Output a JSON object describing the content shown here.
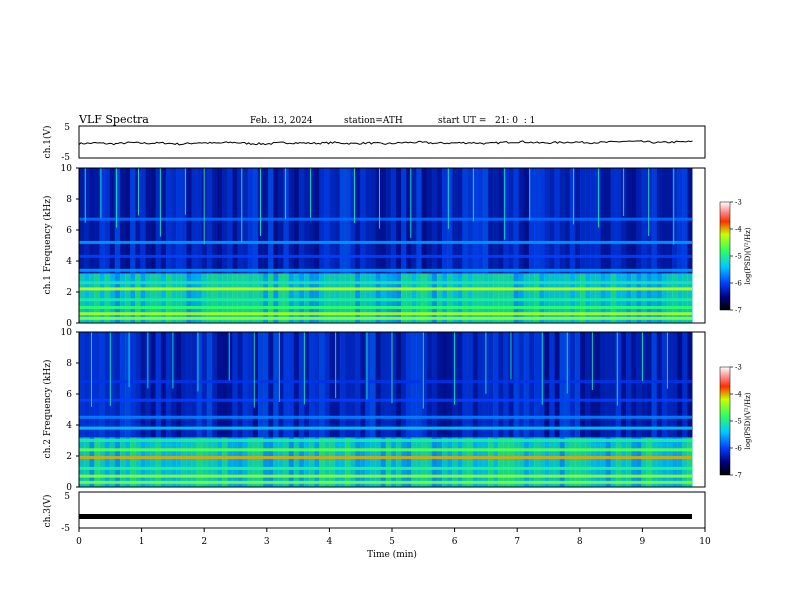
{
  "header": {
    "title": "VLF Spectra",
    "date": "Feb. 13, 2024",
    "station": "station=ATH",
    "start": "start UT =   21: 0  : 1"
  },
  "chart_data": [
    {
      "type": "line",
      "panel": "ch1-waveform",
      "ylabel": "ch.1(V)",
      "ylim": [
        -5,
        5
      ],
      "yticks": [
        "5",
        "-5"
      ],
      "xlim": [
        0,
        10
      ],
      "series": [
        {
          "values": [
            -0.5,
            -0.3,
            -0.6,
            -0.2,
            -0.4,
            -0.3,
            -0.7,
            -0.2,
            -0.4,
            -0.1,
            -0.5,
            -0.6,
            -0.2,
            -0.3,
            -0.4,
            -0.2,
            -0.5,
            -0.3,
            -0.6,
            -0.2,
            -0.1,
            -0.4,
            -0.3,
            -0.2,
            -0.5,
            -0.1,
            0.1,
            -0.3,
            -0.2,
            0.0,
            -0.2,
            -0.1,
            0.2,
            0.1,
            -0.2,
            0.0,
            0.1
          ]
        }
      ]
    },
    {
      "type": "heatmap",
      "panel": "ch1-spectrogram",
      "ylabel": "ch.1 Frequency (kHz)",
      "xlim": [
        0,
        10
      ],
      "ylim": [
        0,
        10
      ],
      "yticks": [
        "0",
        "2",
        "4",
        "6",
        "8",
        "10"
      ],
      "colorbar": {
        "label": "log(PSD)(V²/Hz)",
        "ticks": [
          "-3",
          "-4",
          "-5",
          "-6",
          "-7"
        ],
        "range": [
          -7,
          -3
        ]
      },
      "bands_khz": [
        {
          "f": 0.3,
          "level": -4.4
        },
        {
          "f": 0.6,
          "level": -4.3
        },
        {
          "f": 1.0,
          "level": -4.8
        },
        {
          "f": 1.5,
          "level": -5.0
        },
        {
          "f": 2.2,
          "level": -4.2
        },
        {
          "f": 2.6,
          "level": -5.1
        },
        {
          "f": 3.4,
          "level": -5.6
        },
        {
          "f": 4.3,
          "level": -6.0
        },
        {
          "f": 5.2,
          "level": -5.6
        },
        {
          "f": 6.7,
          "level": -5.8
        }
      ],
      "sferic_times_min": [
        0.1,
        0.35,
        0.6,
        0.95,
        1.3,
        1.7,
        2.0,
        2.6,
        2.9,
        3.3,
        3.7,
        4.4,
        4.8,
        5.3,
        5.9,
        6.3,
        6.8,
        7.2,
        7.9,
        8.3,
        8.7,
        9.1,
        9.5
      ]
    },
    {
      "type": "heatmap",
      "panel": "ch2-spectrogram",
      "ylabel": "ch.2 Frequency (kHz)",
      "xlim": [
        0,
        10
      ],
      "ylim": [
        0,
        10
      ],
      "yticks": [
        "0",
        "2",
        "4",
        "6",
        "8",
        "10"
      ],
      "colorbar": {
        "label": "log(PSD)(V²/Hz)",
        "ticks": [
          "-3",
          "-4",
          "-5",
          "-6",
          "-7"
        ],
        "range": [
          -7,
          -3
        ]
      },
      "bands_khz": [
        {
          "f": 0.3,
          "level": -4.5
        },
        {
          "f": 0.7,
          "level": -4.4
        },
        {
          "f": 1.2,
          "level": -4.9
        },
        {
          "f": 1.9,
          "level": -4.0
        },
        {
          "f": 2.4,
          "level": -4.6
        },
        {
          "f": 3.0,
          "level": -5.0
        },
        {
          "f": 3.8,
          "level": -5.4
        },
        {
          "f": 4.5,
          "level": -5.7
        },
        {
          "f": 5.6,
          "level": -6.0
        },
        {
          "f": 6.8,
          "level": -6.1
        }
      ],
      "sferic_times_min": [
        0.2,
        0.5,
        0.8,
        1.1,
        1.5,
        1.9,
        2.4,
        2.8,
        3.2,
        3.6,
        4.1,
        4.6,
        5.0,
        5.5,
        6.0,
        6.5,
        6.9,
        7.4,
        7.8,
        8.2,
        8.6,
        9.0,
        9.4
      ]
    },
    {
      "type": "line",
      "panel": "ch3-waveform",
      "ylabel": "ch.3(V)",
      "ylim": [
        -5,
        5
      ],
      "yticks": [
        "5",
        "-5"
      ],
      "xlim": [
        0,
        10
      ],
      "xlabel": "Time (min)",
      "xticks": [
        "0",
        "1",
        "2",
        "3",
        "4",
        "5",
        "6",
        "7",
        "8",
        "9",
        "10"
      ],
      "series": [
        {
          "values": [
            -1.8,
            -1.8
          ]
        }
      ]
    }
  ]
}
